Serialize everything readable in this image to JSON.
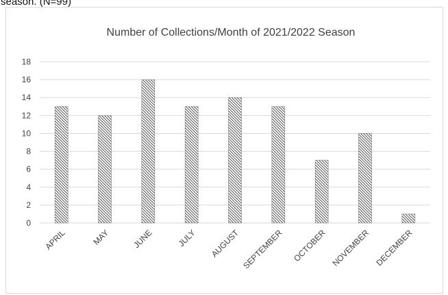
{
  "caption": "season. (N=99)",
  "chart_data": {
    "type": "bar",
    "title": "Number of Collections/Month of 2021/2022 Season",
    "xlabel": "",
    "ylabel": "",
    "categories": [
      "APRIL",
      "MAY",
      "JUNE",
      "JULY",
      "AUGUST",
      "SEPTEMBER",
      "OCTOBER",
      "NOVEMBER",
      "DECEMBER"
    ],
    "values": [
      13,
      12,
      16,
      13,
      14,
      13,
      7,
      10,
      1
    ],
    "ylim": [
      0,
      18
    ],
    "yticks": [
      0,
      2,
      4,
      6,
      8,
      10,
      12,
      14,
      16,
      18
    ],
    "grid": true,
    "legend": "none",
    "bar_pattern": "diagonal-hatch",
    "colors": {
      "grid": "#d9d9d9",
      "bar_stroke": "#7f7f7f",
      "hatch": "#404040",
      "text": "#404040"
    }
  }
}
